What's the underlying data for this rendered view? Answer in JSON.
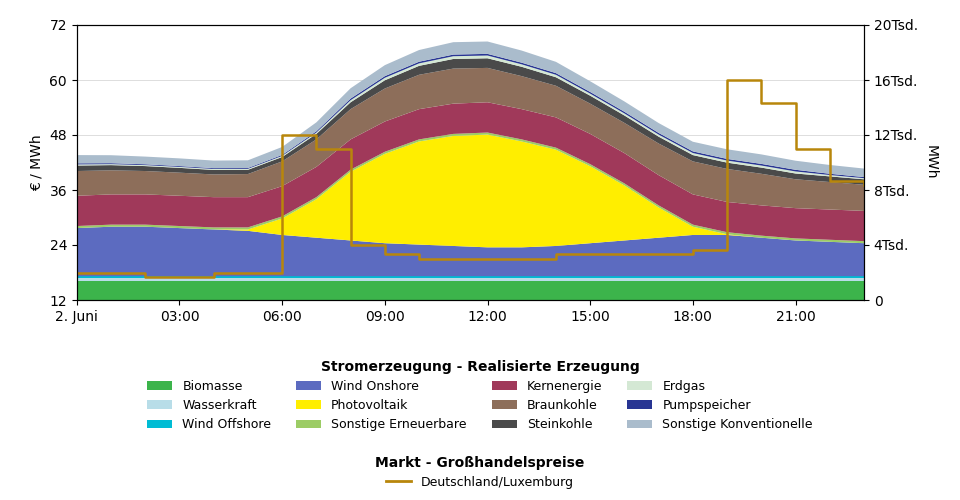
{
  "chart_data": {
    "type": "area",
    "stacked": true,
    "grid": true,
    "legend": "lower center",
    "x": [
      0,
      1,
      2,
      3,
      4,
      5,
      6,
      7,
      8,
      9,
      10,
      11,
      12,
      13,
      14,
      15,
      16,
      17,
      18,
      19,
      20,
      21,
      22,
      23
    ],
    "xlim": [
      0,
      23
    ],
    "xticks": [
      {
        "value": 0,
        "label": "2. Juni"
      },
      {
        "value": 3,
        "label": "03:00"
      },
      {
        "value": 6,
        "label": "06:00"
      },
      {
        "value": 9,
        "label": "09:00"
      },
      {
        "value": 12,
        "label": "12:00"
      },
      {
        "value": 15,
        "label": "15:00"
      },
      {
        "value": 18,
        "label": "18:00"
      },
      {
        "value": 21,
        "label": "21:00"
      }
    ],
    "y_label": "€ / MWh",
    "y2_label": "MWh",
    "ylim": [
      12,
      72
    ],
    "yticks": [
      12,
      24,
      36,
      48,
      60,
      72
    ],
    "y2lim": [
      0,
      20000
    ],
    "y2ticks": [
      0,
      {
        "value": 4000,
        "label": "4Tsd."
      },
      {
        "value": 8000,
        "label": "8Tsd."
      },
      {
        "value": 12000,
        "label": "12Tsd."
      },
      {
        "value": 16000,
        "label": "16Tsd."
      },
      {
        "value": 20000,
        "label": "20Tsd."
      }
    ],
    "annotations": [
      "Stromerzeugung - Realisierte Erzeugung",
      "Markt - Großhandelspreise"
    ],
    "series": [
      {
        "name": "Biomasse",
        "type": "area",
        "axis": "y2",
        "color": "#3cb44b",
        "values": [
          1400,
          1400,
          1400,
          1400,
          1400,
          1400,
          1400,
          1400,
          1400,
          1400,
          1400,
          1400,
          1400,
          1400,
          1400,
          1400,
          1400,
          1400,
          1400,
          1400,
          1400,
          1400,
          1400,
          1400
        ]
      },
      {
        "name": "Wasserkraft",
        "type": "area",
        "axis": "y2",
        "color": "#b8dde8",
        "values": [
          200,
          200,
          200,
          200,
          200,
          200,
          200,
          200,
          200,
          200,
          200,
          200,
          200,
          200,
          200,
          200,
          200,
          200,
          200,
          200,
          200,
          200,
          200,
          200
        ]
      },
      {
        "name": "Wind Offshore",
        "type": "area",
        "axis": "y2",
        "color": "#00bcd4",
        "values": [
          130,
          130,
          130,
          130,
          130,
          130,
          130,
          130,
          130,
          130,
          130,
          130,
          130,
          130,
          130,
          130,
          130,
          130,
          130,
          130,
          130,
          130,
          130,
          130
        ]
      },
      {
        "name": "Wind Onshore",
        "type": "area",
        "axis": "y2",
        "color": "#5c6bc0",
        "values": [
          3500,
          3600,
          3600,
          3500,
          3400,
          3300,
          3000,
          2800,
          2600,
          2400,
          2300,
          2200,
          2100,
          2100,
          2200,
          2400,
          2600,
          2800,
          3000,
          3000,
          2800,
          2600,
          2500,
          2400
        ]
      },
      {
        "name": "Photovoltaik",
        "type": "area",
        "axis": "y2",
        "color": "#ffee00",
        "values": [
          0,
          0,
          0,
          0,
          0,
          100,
          1200,
          2800,
          5000,
          6500,
          7500,
          8000,
          8200,
          7700,
          7000,
          5600,
          4000,
          2200,
          600,
          50,
          0,
          0,
          0,
          0
        ]
      },
      {
        "name": "Sonstige Erneuerbare",
        "type": "area",
        "axis": "y2",
        "color": "#9ccc65",
        "values": [
          150,
          150,
          150,
          150,
          150,
          150,
          150,
          150,
          150,
          150,
          150,
          150,
          150,
          150,
          150,
          150,
          150,
          150,
          150,
          150,
          150,
          150,
          150,
          150
        ]
      },
      {
        "name": "Kernenergie",
        "type": "area",
        "axis": "y2",
        "color": "#a0395a",
        "values": [
          2200,
          2200,
          2200,
          2200,
          2200,
          2200,
          2200,
          2200,
          2200,
          2200,
          2200,
          2200,
          2200,
          2200,
          2200,
          2200,
          2200,
          2200,
          2200,
          2200,
          2200,
          2200,
          2200,
          2200
        ]
      },
      {
        "name": "Braunkohle",
        "type": "area",
        "axis": "y2",
        "color": "#8d6e5a",
        "values": [
          1800,
          1750,
          1700,
          1680,
          1650,
          1680,
          1800,
          2000,
          2200,
          2400,
          2500,
          2550,
          2500,
          2400,
          2300,
          2200,
          2200,
          2300,
          2400,
          2400,
          2300,
          2100,
          2000,
          1900
        ]
      },
      {
        "name": "Steinkohle",
        "type": "area",
        "axis": "y2",
        "color": "#4a4a4a",
        "values": [
          400,
          380,
          360,
          350,
          330,
          310,
          320,
          400,
          500,
          600,
          650,
          700,
          700,
          680,
          620,
          580,
          540,
          500,
          460,
          460,
          450,
          420,
          410,
          400
        ]
      },
      {
        "name": "Erdgas",
        "type": "area",
        "axis": "y2",
        "color": "#d4e8d4",
        "values": [
          80,
          70,
          70,
          70,
          70,
          70,
          80,
          100,
          150,
          180,
          180,
          200,
          200,
          180,
          180,
          150,
          150,
          150,
          150,
          150,
          150,
          150,
          100,
          80
        ]
      },
      {
        "name": "Pumpspeicher",
        "type": "area",
        "axis": "y2",
        "color": "#283593",
        "values": [
          80,
          70,
          60,
          60,
          60,
          60,
          70,
          90,
          120,
          120,
          120,
          120,
          120,
          120,
          120,
          120,
          120,
          120,
          120,
          120,
          120,
          120,
          90,
          80
        ]
      },
      {
        "name": "Sonstige Konventionelle",
        "type": "area",
        "axis": "y2",
        "color": "#aabccc",
        "values": [
          600,
          580,
          560,
          560,
          550,
          560,
          580,
          650,
          750,
          800,
          850,
          900,
          900,
          880,
          820,
          780,
          750,
          720,
          700,
          700,
          690,
          660,
          640,
          620
        ]
      },
      {
        "name": "Deutschland/Luxemburg",
        "type": "step",
        "axis": "y",
        "color": "#b8860b",
        "values": [
          18,
          18,
          17,
          17,
          18,
          18,
          48,
          45,
          24,
          22,
          21,
          21,
          21,
          21,
          22,
          22,
          22,
          22,
          23,
          60,
          55,
          45,
          38,
          37
        ]
      }
    ]
  }
}
